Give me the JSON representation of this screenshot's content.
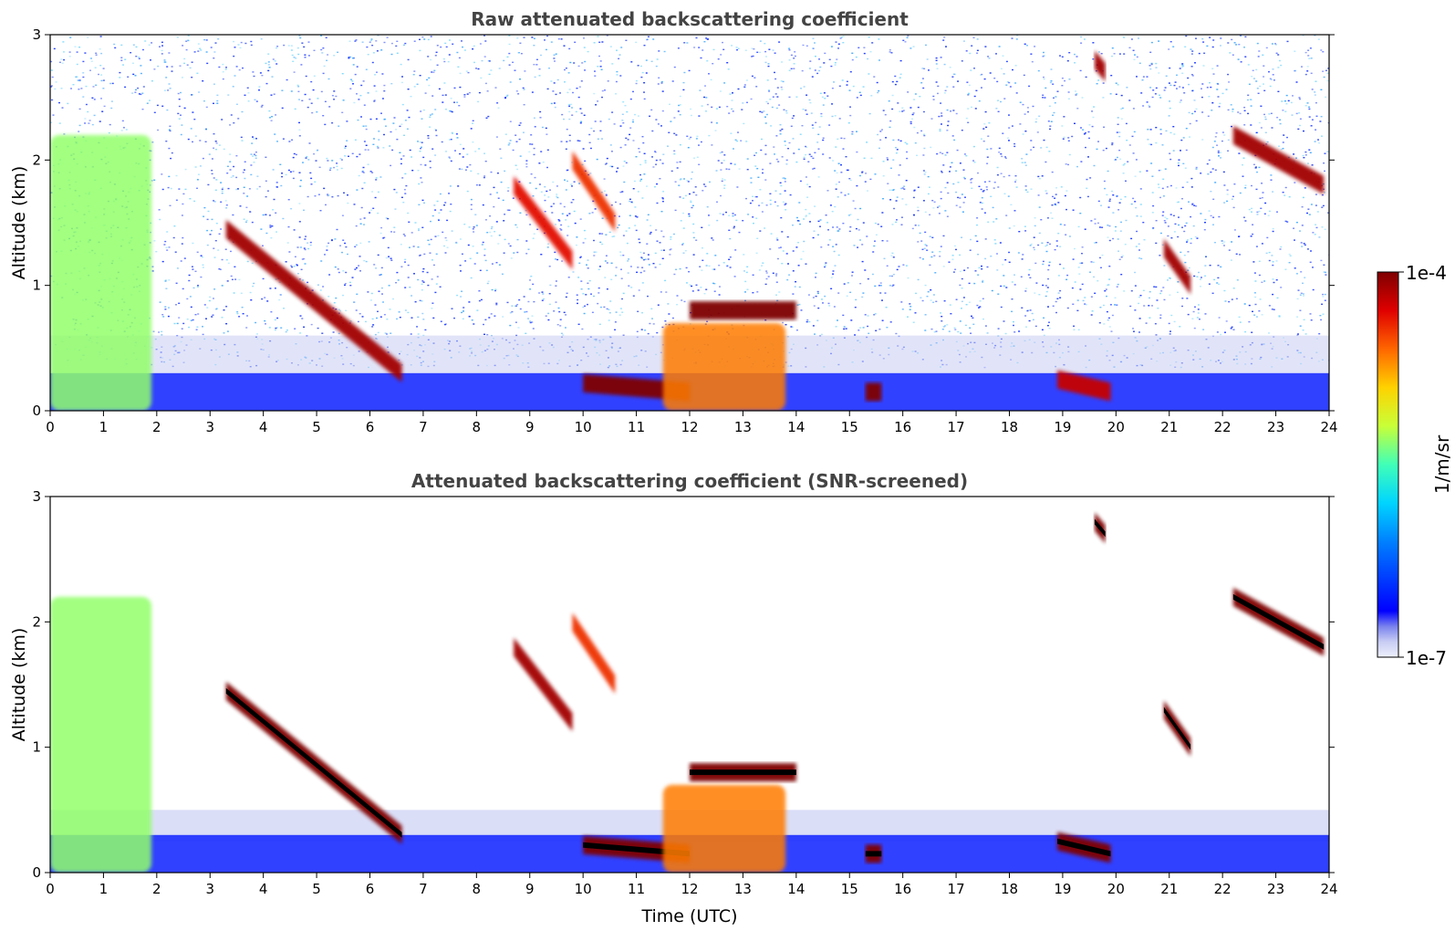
{
  "chart_data": [
    {
      "type": "heatmap",
      "title": "Raw attenuated backscattering coefficient",
      "xlabel": "",
      "ylabel": "Altitude (km)",
      "xlim": [
        0,
        24
      ],
      "ylim": [
        0,
        3
      ],
      "x_ticks": [
        0,
        1,
        2,
        3,
        4,
        5,
        6,
        7,
        8,
        9,
        10,
        11,
        12,
        13,
        14,
        15,
        16,
        17,
        18,
        19,
        20,
        21,
        22,
        23,
        24
      ],
      "y_ticks": [
        0,
        1,
        2,
        3
      ],
      "screened": false,
      "features": [
        {
          "kind": "aerosol_layer",
          "t_start": 0.0,
          "t_end": 1.9,
          "alt_bottom": 0.0,
          "alt_top": 2.2,
          "log_intensity": -5.2
        },
        {
          "kind": "cloud_layer",
          "t_start": 3.3,
          "t_end": 6.6,
          "alt_start": 1.45,
          "alt_end": 0.3,
          "log_intensity": -4.1
        },
        {
          "kind": "cloud_layer",
          "t_start": 8.7,
          "t_end": 9.8,
          "alt_start": 1.8,
          "alt_end": 1.2,
          "log_intensity": -4.3
        },
        {
          "kind": "cloud_layer",
          "t_start": 9.8,
          "t_end": 10.6,
          "alt_start": 2.0,
          "alt_end": 1.5,
          "log_intensity": -4.4
        },
        {
          "kind": "cloud_layer",
          "t_start": 10.0,
          "t_end": 12.0,
          "alt_start": 0.22,
          "alt_end": 0.15,
          "log_intensity": -4.0
        },
        {
          "kind": "cloud_layer",
          "t_start": 12.0,
          "t_end": 14.0,
          "alt_start": 0.8,
          "alt_end": 0.8,
          "log_intensity": -4.0
        },
        {
          "kind": "aerosol_layer",
          "t_start": 11.5,
          "t_end": 13.8,
          "alt_bottom": 0.0,
          "alt_top": 0.7,
          "log_intensity": -4.6
        },
        {
          "kind": "cloud_layer",
          "t_start": 15.3,
          "t_end": 15.6,
          "alt_start": 0.15,
          "alt_end": 0.15,
          "log_intensity": -4.0
        },
        {
          "kind": "cloud_layer",
          "t_start": 19.6,
          "t_end": 19.8,
          "alt_start": 2.8,
          "alt_end": 2.7,
          "log_intensity": -4.1
        },
        {
          "kind": "cloud_layer",
          "t_start": 18.9,
          "t_end": 19.9,
          "alt_start": 0.25,
          "alt_end": 0.15,
          "log_intensity": -4.2
        },
        {
          "kind": "cloud_layer",
          "t_start": 20.9,
          "t_end": 21.4,
          "alt_start": 1.3,
          "alt_end": 1.0,
          "log_intensity": -4.1
        },
        {
          "kind": "cloud_layer",
          "t_start": 22.2,
          "t_end": 23.9,
          "alt_start": 2.2,
          "alt_end": 1.8,
          "log_intensity": -4.1
        }
      ]
    },
    {
      "type": "heatmap",
      "title": "Attenuated backscattering coefficient (SNR-screened)",
      "xlabel": "Time (UTC)",
      "ylabel": "Altitude (km)",
      "xlim": [
        0,
        24
      ],
      "ylim": [
        0,
        3
      ],
      "x_ticks": [
        0,
        1,
        2,
        3,
        4,
        5,
        6,
        7,
        8,
        9,
        10,
        11,
        12,
        13,
        14,
        15,
        16,
        17,
        18,
        19,
        20,
        21,
        22,
        23,
        24
      ],
      "y_ticks": [
        0,
        1,
        2,
        3
      ],
      "screened": true,
      "features": [
        {
          "kind": "aerosol_layer",
          "t_start": 0.0,
          "t_end": 1.9,
          "alt_bottom": 0.0,
          "alt_top": 2.2,
          "log_intensity": -5.2
        },
        {
          "kind": "cloud_layer",
          "t_start": 3.3,
          "t_end": 6.6,
          "alt_start": 1.45,
          "alt_end": 0.3,
          "log_intensity": -3.9
        },
        {
          "kind": "cloud_layer",
          "t_start": 8.7,
          "t_end": 9.8,
          "alt_start": 1.8,
          "alt_end": 1.2,
          "log_intensity": -4.1
        },
        {
          "kind": "cloud_layer",
          "t_start": 9.8,
          "t_end": 10.6,
          "alt_start": 2.0,
          "alt_end": 1.5,
          "log_intensity": -4.4
        },
        {
          "kind": "cloud_layer",
          "t_start": 10.0,
          "t_end": 12.0,
          "alt_start": 0.22,
          "alt_end": 0.15,
          "log_intensity": -3.9
        },
        {
          "kind": "cloud_layer",
          "t_start": 12.0,
          "t_end": 14.0,
          "alt_start": 0.8,
          "alt_end": 0.8,
          "log_intensity": -3.9
        },
        {
          "kind": "aerosol_layer",
          "t_start": 11.5,
          "t_end": 13.8,
          "alt_bottom": 0.0,
          "alt_top": 0.7,
          "log_intensity": -4.6
        },
        {
          "kind": "cloud_layer",
          "t_start": 15.3,
          "t_end": 15.6,
          "alt_start": 0.15,
          "alt_end": 0.15,
          "log_intensity": -3.9
        },
        {
          "kind": "cloud_layer",
          "t_start": 19.6,
          "t_end": 19.8,
          "alt_start": 2.8,
          "alt_end": 2.7,
          "log_intensity": -3.9
        },
        {
          "kind": "cloud_layer",
          "t_start": 18.9,
          "t_end": 19.9,
          "alt_start": 0.25,
          "alt_end": 0.15,
          "log_intensity": -3.9
        },
        {
          "kind": "cloud_layer",
          "t_start": 20.9,
          "t_end": 21.4,
          "alt_start": 1.3,
          "alt_end": 1.0,
          "log_intensity": -3.9
        },
        {
          "kind": "cloud_layer",
          "t_start": 22.2,
          "t_end": 23.9,
          "alt_start": 2.2,
          "alt_end": 1.8,
          "log_intensity": -3.9
        }
      ]
    }
  ],
  "colorbar": {
    "label": "1/m/sr",
    "max_label": "1e-4",
    "min_label": "1e-7",
    "scale": "log",
    "range": [
      1e-07,
      0.0001
    ],
    "colormap": "jet",
    "colors": [
      "#eef0fb",
      "#c8cdf3",
      "#7a82ee",
      "#0000ff",
      "#0080ff",
      "#00d4ff",
      "#40ffb8",
      "#c8ff38",
      "#ffd200",
      "#ff6600",
      "#e00000",
      "#7f0000"
    ]
  },
  "colors": {
    "title": "#444444",
    "saturated_screened": "#000000",
    "background": "#ffffff"
  }
}
